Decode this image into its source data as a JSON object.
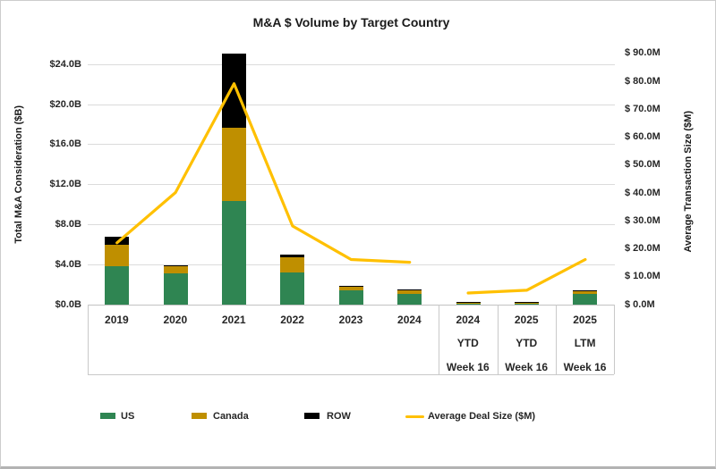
{
  "frame": {
    "background": "#ffffff",
    "border_color": "#cccccc",
    "bottom_edge_color": "#b3b3b3"
  },
  "chart": {
    "title": "M&A $ Volume by Target Country",
    "left_axis_title": "Total M&A Consideration ($B)",
    "right_axis_title": "Average Transaction Size ($M)"
  },
  "chart_data": {
    "type": "bar",
    "subtype": "stacked-bar with overlay line, dual y-axes, legend bottom",
    "categories": [
      "2019",
      "2020",
      "2021",
      "2022",
      "2023",
      "2024",
      "2024 YTD Week 16",
      "2025 YTD Week 16",
      "2025 LTM Week 16"
    ],
    "category_label_lines": [
      [
        "2019"
      ],
      [
        "2020"
      ],
      [
        "2021"
      ],
      [
        "2022"
      ],
      [
        "2023"
      ],
      [
        "2024"
      ],
      [
        "2024",
        "YTD",
        "Week 16"
      ],
      [
        "2025",
        "YTD",
        "Week 16"
      ],
      [
        "2025",
        "LTM",
        "Week 16"
      ]
    ],
    "bar_unit": "$B",
    "line_unit": "$M",
    "series": [
      {
        "name": "US",
        "type": "bar",
        "axis": "left",
        "color": "#2F8552",
        "values": [
          3.8,
          3.1,
          10.4,
          3.2,
          1.4,
          1.1,
          0.03,
          0.03,
          1.1
        ]
      },
      {
        "name": "Canada",
        "type": "bar",
        "axis": "left",
        "color": "#BF8F00",
        "values": [
          2.2,
          0.7,
          7.3,
          1.5,
          0.4,
          0.35,
          0.02,
          0.02,
          0.25
        ]
      },
      {
        "name": "ROW",
        "type": "bar",
        "axis": "left",
        "color": "#000000",
        "values": [
          0.8,
          0.1,
          7.4,
          0.3,
          0.1,
          0.1,
          0.05,
          0.05,
          0.05
        ]
      },
      {
        "name": "Average Deal Size ($M)",
        "type": "line",
        "axis": "right",
        "color": "#FFC000",
        "values": [
          22,
          40,
          79,
          28,
          16,
          15,
          4,
          5,
          16
        ],
        "gap_after_index": 5
      }
    ],
    "left_axis": {
      "tick_labels": [
        "$0.0B",
        "$4.0B",
        "$8.0B",
        "$12.0B",
        "$16.0B",
        "$20.0B",
        "$24.0B"
      ],
      "tick_values": [
        0,
        4,
        8,
        12,
        16,
        20,
        24
      ],
      "range": [
        0,
        26
      ],
      "grid": true
    },
    "right_axis": {
      "tick_labels": [
        "$ 0.0M",
        "$ 10.0M",
        "$ 20.0M",
        "$ 30.0M",
        "$ 40.0M",
        "$ 50.0M",
        "$ 60.0M",
        "$ 70.0M",
        "$ 80.0M",
        "$ 90.0M"
      ],
      "tick_values": [
        0,
        10,
        20,
        30,
        40,
        50,
        60,
        70,
        80,
        90
      ],
      "range": [
        0,
        93
      ],
      "grid": false
    },
    "legend_position": "bottom"
  },
  "legend": {
    "items": [
      {
        "label": "US",
        "swatch": "bar",
        "color": "#2F8552"
      },
      {
        "label": "Canada",
        "swatch": "bar",
        "color": "#BF8F00"
      },
      {
        "label": "ROW",
        "swatch": "bar",
        "color": "#000000"
      },
      {
        "label": "Average Deal Size ($M)",
        "swatch": "line",
        "color": "#FFC000"
      }
    ]
  }
}
